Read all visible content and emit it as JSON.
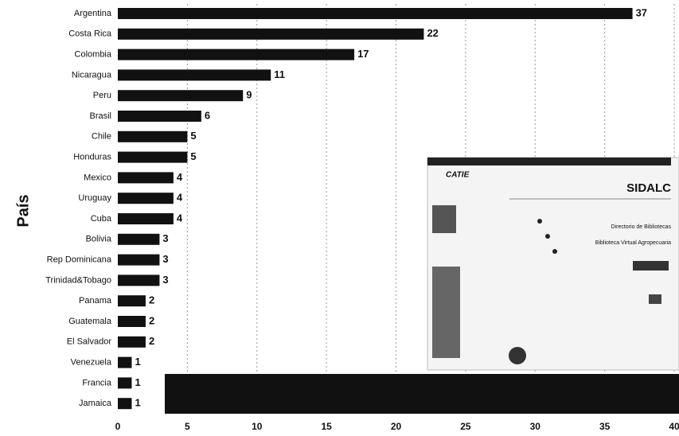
{
  "chart_data": {
    "type": "barh",
    "ylabel": "País",
    "categories": [
      "Argentina",
      "Costa Rica",
      "Colombia",
      "Nicaragua",
      "Peru",
      "Brasil",
      "Chile",
      "Honduras",
      "Mexico",
      "Uruguay",
      "Cuba",
      "Bolivia",
      "Rep Dominicana",
      "Trinidad&Tobago",
      "Panama",
      "Guatemala",
      "El Salvador",
      "Venezuela",
      "Francia",
      "Jamaica"
    ],
    "values": [
      37,
      22,
      17,
      11,
      9,
      6,
      5,
      5,
      4,
      4,
      4,
      3,
      3,
      3,
      2,
      2,
      2,
      1,
      1,
      1
    ],
    "color": "#111111",
    "xlim": [
      0,
      40
    ],
    "xticks": [
      0,
      5,
      10,
      15,
      20,
      25,
      30,
      35,
      40
    ],
    "grid": true
  },
  "inset": {
    "logo": "CATIE",
    "title": "SIDALC",
    "links": [
      "Directorio de Bibliotecas",
      "Biblioteca Virtual Agropecuaria"
    ]
  }
}
